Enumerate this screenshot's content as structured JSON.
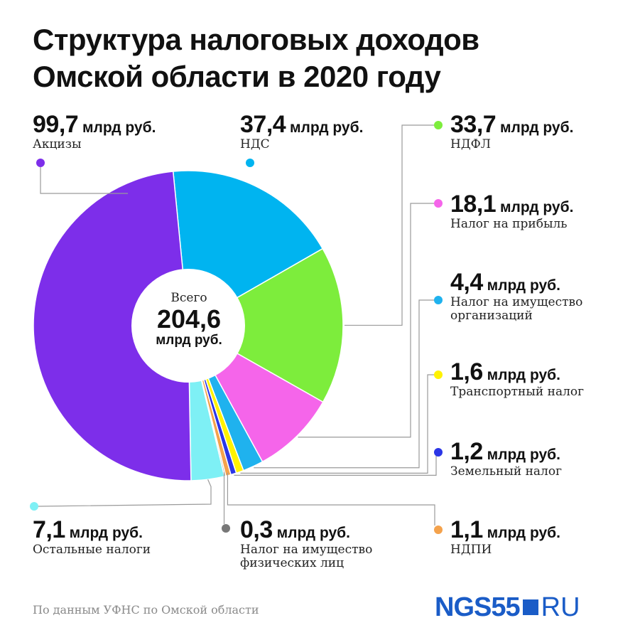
{
  "title_line1": "Структура налоговых доходов",
  "title_line2": "Омской области в 2020 году",
  "center": {
    "label": "Всего",
    "value": "204,6",
    "unit": "млрд руб."
  },
  "source": "По данным УФНС по Омской области",
  "logo": {
    "brand": "NGS55",
    "suffix": "RU"
  },
  "chart_data": {
    "type": "pie",
    "title": "Структура налоговых доходов Омской области в 2020 году",
    "unit": "млрд руб.",
    "total": 204.6,
    "slices": [
      {
        "name": "НДС",
        "value": 37.4,
        "value_text": "37,4",
        "color": "#00b4f0"
      },
      {
        "name": "НДФЛ",
        "value": 33.7,
        "value_text": "33,7",
        "color": "#7ded3c"
      },
      {
        "name": "Налог на прибыль",
        "value": 18.1,
        "value_text": "18,1",
        "color": "#f565ea"
      },
      {
        "name": "Налог на имущество организаций",
        "name_line1": "Налог на имущество",
        "name_line2": "организаций",
        "value": 4.4,
        "value_text": "4,4",
        "color": "#1fb2ee"
      },
      {
        "name": "Транспортный налог",
        "value": 1.6,
        "value_text": "1,6",
        "color": "#fff200"
      },
      {
        "name": "Земельный налог",
        "value": 1.2,
        "value_text": "1,2",
        "color": "#2b36e6"
      },
      {
        "name": "НДПИ",
        "value": 1.1,
        "value_text": "1,1",
        "color": "#f4a24c"
      },
      {
        "name": "Налог на имущество физических лиц",
        "name_line1": "Налог на имущество",
        "name_line2": "физических лиц",
        "value": 0.3,
        "value_text": "0,3",
        "color": "#777777"
      },
      {
        "name": "Остальные налоги",
        "value": 7.1,
        "value_text": "7,1",
        "color": "#7ef0f5"
      },
      {
        "name": "Акцизы",
        "value": 99.7,
        "value_text": "99,7",
        "color": "#7d2eea"
      }
    ]
  }
}
